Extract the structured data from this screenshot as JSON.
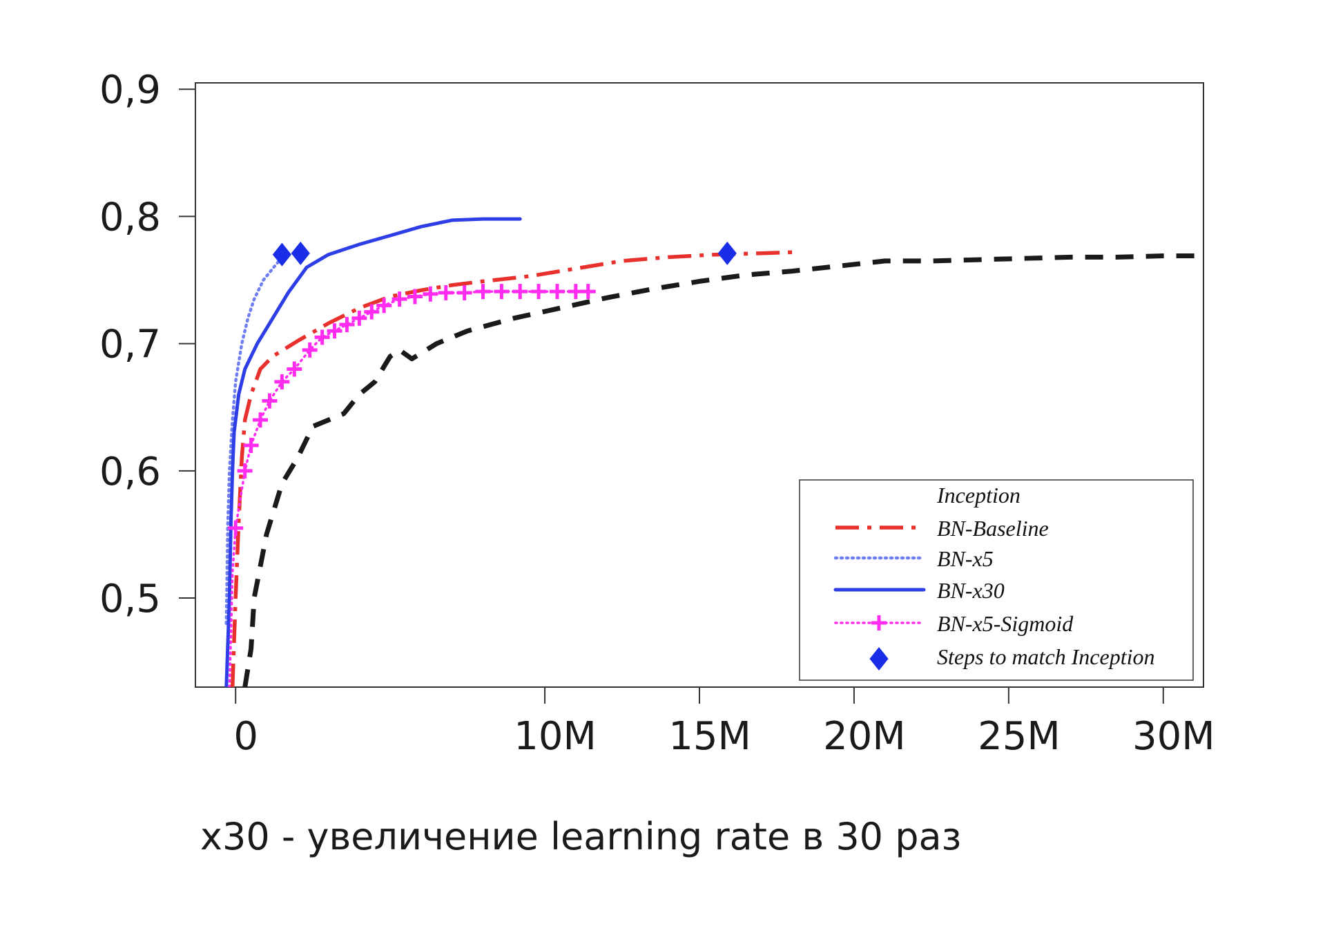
{
  "chart_data": {
    "type": "line",
    "title": "",
    "xlabel": "",
    "ylabel": "",
    "xlim": [
      -1.3,
      31.3
    ],
    "ylim": [
      0.43,
      0.905
    ],
    "x_ticks": [
      {
        "value": 0,
        "label": "0"
      },
      {
        "value": 10,
        "label": "10M"
      },
      {
        "value": 15,
        "label": "15M"
      },
      {
        "value": 20,
        "label": "20M"
      },
      {
        "value": 25,
        "label": "25M"
      },
      {
        "value": 30,
        "label": "30M"
      }
    ],
    "y_ticks": [
      {
        "value": 0.9,
        "label": "0,9"
      },
      {
        "value": 0.8,
        "label": "0,8"
      },
      {
        "value": 0.7,
        "label": "0,7"
      },
      {
        "value": 0.6,
        "label": "0,6"
      },
      {
        "value": 0.5,
        "label": "0,5"
      }
    ],
    "grid": false,
    "legend_position": "bottom-right",
    "series": [
      {
        "name": "Inception",
        "color": "#1a1a1a",
        "style": "dashed",
        "points": [
          [
            0.3,
            0.43
          ],
          [
            0.5,
            0.46
          ],
          [
            0.6,
            0.5
          ],
          [
            1.0,
            0.55
          ],
          [
            1.5,
            0.59
          ],
          [
            2.0,
            0.61
          ],
          [
            2.5,
            0.635
          ],
          [
            3.0,
            0.64
          ],
          [
            3.5,
            0.645
          ],
          [
            4.0,
            0.66
          ],
          [
            4.5,
            0.67
          ],
          [
            5.0,
            0.69
          ],
          [
            5.3,
            0.695
          ],
          [
            5.7,
            0.688
          ],
          [
            6.5,
            0.7
          ],
          [
            7.5,
            0.71
          ],
          [
            9.0,
            0.72
          ],
          [
            10.5,
            0.728
          ],
          [
            12.0,
            0.736
          ],
          [
            13.5,
            0.743
          ],
          [
            15.0,
            0.749
          ],
          [
            16.5,
            0.754
          ],
          [
            18.0,
            0.757
          ],
          [
            19.5,
            0.761
          ],
          [
            21.0,
            0.765
          ],
          [
            22.5,
            0.765
          ],
          [
            24.0,
            0.766
          ],
          [
            25.5,
            0.767
          ],
          [
            27.0,
            0.768
          ],
          [
            28.5,
            0.768
          ],
          [
            30.0,
            0.769
          ],
          [
            31.3,
            0.769
          ]
        ]
      },
      {
        "name": "BN-Baseline",
        "color": "#e8302c",
        "style": "dash-dot",
        "points": [
          [
            -0.1,
            0.43
          ],
          [
            0.0,
            0.5
          ],
          [
            0.1,
            0.56
          ],
          [
            0.2,
            0.61
          ],
          [
            0.3,
            0.64
          ],
          [
            0.5,
            0.66
          ],
          [
            0.8,
            0.68
          ],
          [
            1.2,
            0.69
          ],
          [
            2.0,
            0.702
          ],
          [
            3.0,
            0.716
          ],
          [
            4.0,
            0.728
          ],
          [
            5.0,
            0.737
          ],
          [
            6.0,
            0.742
          ],
          [
            7.0,
            0.746
          ],
          [
            8.0,
            0.749
          ],
          [
            9.5,
            0.753
          ],
          [
            11.0,
            0.759
          ],
          [
            12.5,
            0.765
          ],
          [
            14.0,
            0.768
          ],
          [
            15.5,
            0.77
          ],
          [
            17.0,
            0.771
          ],
          [
            18.2,
            0.772
          ]
        ]
      },
      {
        "name": "BN-x5",
        "color": "#6f7ff2",
        "style": "dotted",
        "points": [
          [
            -0.3,
            0.48
          ],
          [
            -0.25,
            0.56
          ],
          [
            -0.2,
            0.6
          ],
          [
            -0.1,
            0.64
          ],
          [
            0.0,
            0.67
          ],
          [
            0.2,
            0.7
          ],
          [
            0.4,
            0.72
          ],
          [
            0.6,
            0.735
          ],
          [
            0.9,
            0.75
          ],
          [
            1.3,
            0.762
          ],
          [
            1.6,
            0.77
          ]
        ]
      },
      {
        "name": "BN-x30",
        "color": "#2e3ee6",
        "style": "solid",
        "points": [
          [
            -0.3,
            0.43
          ],
          [
            -0.2,
            0.5
          ],
          [
            -0.15,
            0.56
          ],
          [
            -0.1,
            0.6
          ],
          [
            -0.05,
            0.63
          ],
          [
            0.1,
            0.66
          ],
          [
            0.3,
            0.68
          ],
          [
            0.7,
            0.7
          ],
          [
            1.2,
            0.72
          ],
          [
            1.7,
            0.74
          ],
          [
            2.3,
            0.76
          ],
          [
            3.0,
            0.77
          ],
          [
            4.0,
            0.778
          ],
          [
            5.0,
            0.785
          ],
          [
            6.0,
            0.792
          ],
          [
            7.0,
            0.797
          ],
          [
            8.0,
            0.798
          ],
          [
            9.0,
            0.798
          ],
          [
            9.2,
            0.798
          ]
        ]
      },
      {
        "name": "BN-x5-Sigmoid",
        "color": "#ff2cf0",
        "style": "plus",
        "points": [
          [
            -0.2,
            0.43
          ],
          [
            -0.15,
            0.47
          ],
          [
            -0.1,
            0.52
          ],
          [
            0.0,
            0.555
          ],
          [
            0.3,
            0.6
          ],
          [
            0.5,
            0.62
          ],
          [
            0.8,
            0.64
          ],
          [
            1.1,
            0.655
          ],
          [
            1.5,
            0.67
          ],
          [
            1.9,
            0.68
          ],
          [
            2.4,
            0.695
          ],
          [
            2.8,
            0.705
          ],
          [
            3.2,
            0.71
          ],
          [
            3.6,
            0.715
          ],
          [
            4.0,
            0.72
          ],
          [
            4.4,
            0.725
          ],
          [
            4.8,
            0.73
          ],
          [
            5.3,
            0.735
          ],
          [
            5.8,
            0.737
          ],
          [
            6.3,
            0.739
          ],
          [
            6.8,
            0.74
          ],
          [
            7.4,
            0.74
          ],
          [
            8.0,
            0.741
          ],
          [
            8.6,
            0.741
          ],
          [
            9.2,
            0.741
          ],
          [
            9.8,
            0.741
          ],
          [
            10.4,
            0.741
          ],
          [
            11.0,
            0.741
          ],
          [
            11.4,
            0.741
          ]
        ]
      },
      {
        "name": "Steps to match Inception",
        "color": "#1a2ee8",
        "style": "diamond-markers",
        "points": [
          [
            1.5,
            0.77
          ],
          [
            2.1,
            0.771
          ],
          [
            15.9,
            0.771
          ]
        ]
      }
    ]
  },
  "caption": "x30 - увеличение learning rate в 30 раз"
}
